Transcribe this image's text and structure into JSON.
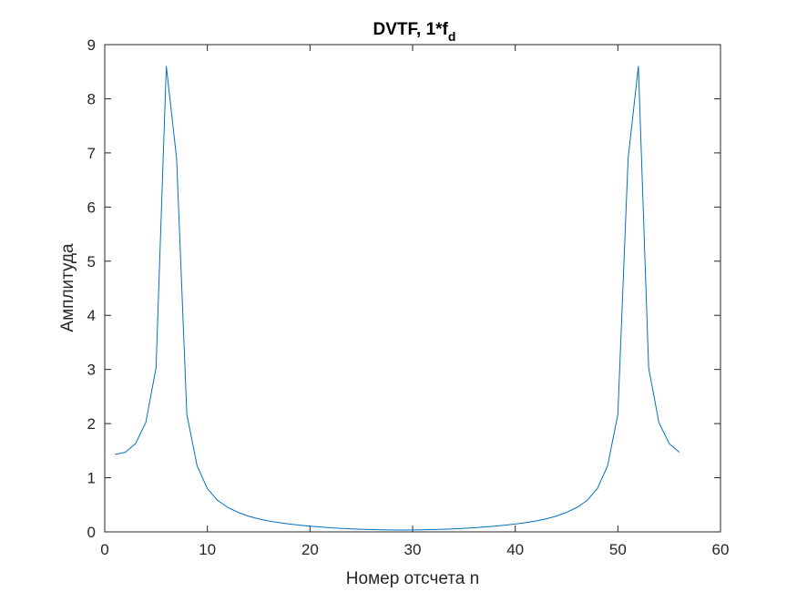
{
  "chart_data": {
    "type": "line",
    "title": "DVTF, 1*f",
    "title_subscript": "d",
    "xlabel": "Номер отсчета n",
    "ylabel": "Амплитуда",
    "xlim": [
      0,
      60
    ],
    "ylim": [
      0,
      9
    ],
    "xticks": [
      0,
      10,
      20,
      30,
      40,
      50,
      60
    ],
    "yticks": [
      0,
      1,
      2,
      3,
      4,
      5,
      6,
      7,
      8,
      9
    ],
    "grid": false,
    "line_color": "#0072BD",
    "x": [
      1,
      2,
      3,
      4,
      5,
      6,
      7,
      8,
      9,
      10,
      11,
      12,
      13,
      14,
      15,
      16,
      17,
      18,
      19,
      20,
      21,
      22,
      23,
      24,
      25,
      26,
      27,
      28,
      29,
      30,
      31,
      32,
      33,
      34,
      35,
      36,
      37,
      38,
      39,
      40,
      41,
      42,
      43,
      44,
      45,
      46,
      47,
      48,
      49,
      50,
      51,
      52,
      53,
      54,
      55,
      56
    ],
    "series": [
      {
        "values": [
          1.43,
          1.47,
          1.63,
          2.02,
          3.03,
          8.6,
          6.9,
          2.17,
          1.22,
          0.8,
          0.58,
          0.45,
          0.36,
          0.29,
          0.24,
          0.2,
          0.17,
          0.145,
          0.125,
          0.105,
          0.09,
          0.075,
          0.065,
          0.055,
          0.048,
          0.042,
          0.038,
          0.035,
          0.034,
          0.035,
          0.038,
          0.042,
          0.048,
          0.055,
          0.065,
          0.075,
          0.09,
          0.105,
          0.125,
          0.145,
          0.17,
          0.2,
          0.24,
          0.29,
          0.36,
          0.45,
          0.58,
          0.8,
          1.22,
          2.17,
          6.9,
          8.6,
          3.03,
          2.02,
          1.63,
          1.47
        ]
      }
    ]
  }
}
